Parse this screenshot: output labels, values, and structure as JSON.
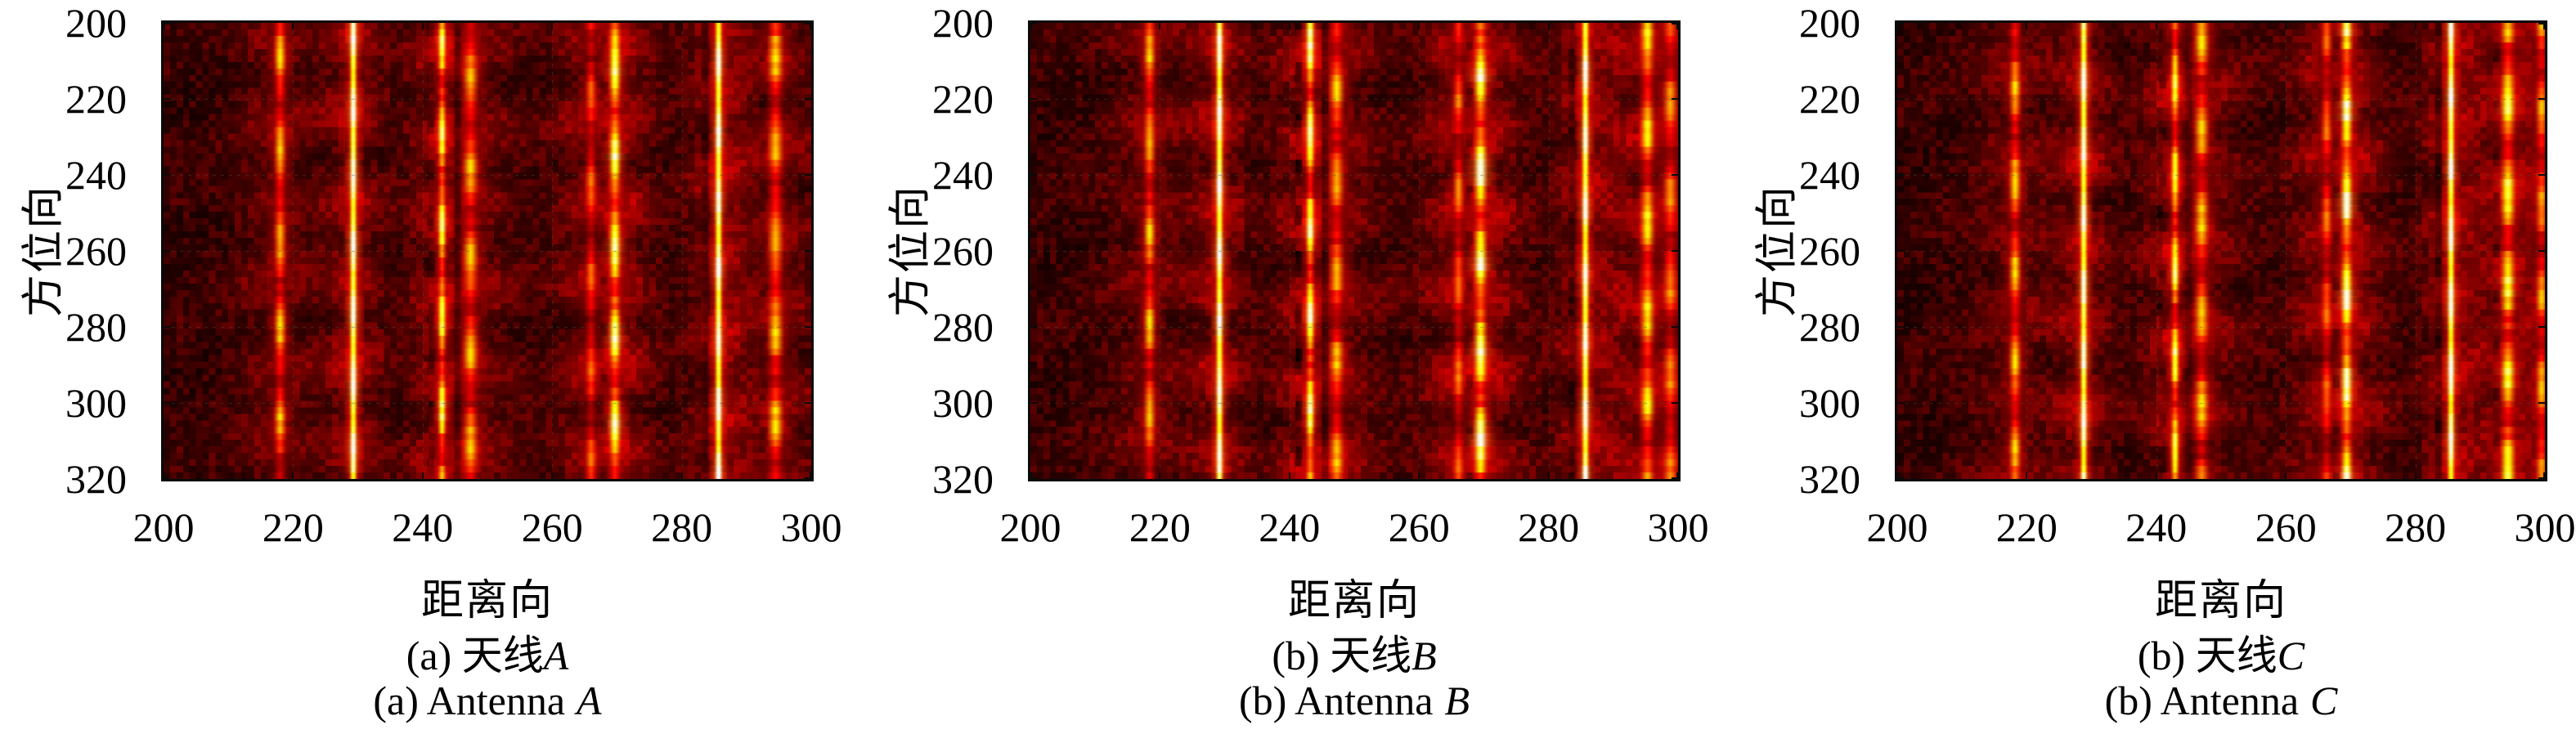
{
  "figure": {
    "background": "#ffffff",
    "axis_color": "#0a0a0a",
    "grid_color": "rgba(70,85,55,0.5)",
    "colormap": "hot"
  },
  "chart_data": [
    {
      "type": "heatmap",
      "subplot": "left",
      "xlabel": "距离向",
      "ylabel": "方位向",
      "xlim": [
        200,
        300
      ],
      "ylim": [
        200,
        320
      ],
      "y_axis_reversed": true,
      "x_ticks": [
        "200",
        "220",
        "240",
        "260",
        "280",
        "300"
      ],
      "y_ticks": [
        "200",
        "220",
        "240",
        "260",
        "280",
        "300",
        "320"
      ],
      "grid": true,
      "colormap": "hot",
      "caption_zh_prefix": "(a) 天线",
      "caption_en_prefix": "(a) Antenna",
      "caption_letter": "A",
      "seed": 7,
      "bright_stripes": [
        {
          "x": 218.0,
          "w": 0.9,
          "t": 0.63
        },
        {
          "x": 229.3,
          "w": 0.6,
          "t": 1.0
        },
        {
          "x": 243.0,
          "w": 0.65,
          "t": 0.8
        },
        {
          "x": 247.4,
          "w": 1.15,
          "t": 0.63
        },
        {
          "x": 266.0,
          "w": 0.85,
          "t": 0.5
        },
        {
          "x": 269.7,
          "w": 0.9,
          "t": 0.86
        },
        {
          "x": 285.7,
          "w": 0.6,
          "t": 1.0
        },
        {
          "x": 294.5,
          "w": 1.15,
          "t": 0.66
        }
      ],
      "dark_stripes": [
        {
          "x": 241.2,
          "w": 0.55,
          "t": 0.4,
          "dotted": true
        },
        {
          "x": 245.3,
          "w": 0.5,
          "t": 0.35,
          "dotted": false
        },
        {
          "x": 268.0,
          "w": 0.5,
          "t": 0.35,
          "dotted": true
        },
        {
          "x": 283.8,
          "w": 0.5,
          "t": 0.22,
          "dotted": false
        },
        {
          "x": 292.8,
          "w": 0.45,
          "t": 0.28,
          "dotted": true
        }
      ]
    },
    {
      "type": "heatmap",
      "subplot": "middle",
      "xlabel": "距离向",
      "ylabel": "方位向",
      "xlim": [
        200,
        300
      ],
      "ylim": [
        200,
        320
      ],
      "y_axis_reversed": true,
      "x_ticks": [
        "200",
        "220",
        "240",
        "260",
        "280",
        "300"
      ],
      "y_ticks": [
        "200",
        "220",
        "240",
        "260",
        "280",
        "300",
        "320"
      ],
      "grid": true,
      "colormap": "hot",
      "caption_zh_prefix": "(b) 天线",
      "caption_en_prefix": "(b) Antenna",
      "caption_letter": "B",
      "seed": 19,
      "bright_stripes": [
        {
          "x": 218.4,
          "w": 0.9,
          "t": 0.63
        },
        {
          "x": 229.2,
          "w": 0.6,
          "t": 1.0
        },
        {
          "x": 243.2,
          "w": 0.7,
          "t": 0.88
        },
        {
          "x": 247.3,
          "w": 1.1,
          "t": 0.62
        },
        {
          "x": 266.1,
          "w": 0.85,
          "t": 0.52
        },
        {
          "x": 269.5,
          "w": 1.0,
          "t": 0.9
        },
        {
          "x": 285.7,
          "w": 0.6,
          "t": 1.0
        },
        {
          "x": 295.3,
          "w": 1.1,
          "t": 0.7
        },
        {
          "x": 298.8,
          "w": 1.1,
          "t": 0.55
        }
      ],
      "dark_stripes": [
        {
          "x": 241.3,
          "w": 0.55,
          "t": 0.5,
          "dotted": true
        },
        {
          "x": 245.5,
          "w": 0.5,
          "t": 0.3,
          "dotted": false
        },
        {
          "x": 267.8,
          "w": 0.5,
          "t": 0.4,
          "dotted": true
        },
        {
          "x": 283.8,
          "w": 0.5,
          "t": 0.22,
          "dotted": false
        },
        {
          "x": 293.5,
          "w": 0.45,
          "t": 0.3,
          "dotted": true
        }
      ]
    },
    {
      "type": "heatmap",
      "subplot": "right",
      "xlabel": "距离向",
      "ylabel": "方位向",
      "xlim": [
        200,
        300
      ],
      "ylim": [
        200,
        320
      ],
      "y_axis_reversed": true,
      "x_ticks": [
        "200",
        "220",
        "240",
        "260",
        "280",
        "300"
      ],
      "y_ticks": [
        "200",
        "220",
        "240",
        "260",
        "280",
        "300",
        "320"
      ],
      "grid": true,
      "colormap": "hot",
      "caption_zh_prefix": "(b) 天线",
      "caption_en_prefix": "(b) Antenna",
      "caption_letter": "C",
      "seed": 42,
      "bright_stripes": [
        {
          "x": 218.2,
          "w": 0.9,
          "t": 0.63
        },
        {
          "x": 228.8,
          "w": 0.6,
          "t": 1.0
        },
        {
          "x": 242.9,
          "w": 0.65,
          "t": 0.82
        },
        {
          "x": 247.0,
          "w": 1.1,
          "t": 0.65
        },
        {
          "x": 266.3,
          "w": 0.85,
          "t": 0.52
        },
        {
          "x": 269.4,
          "w": 0.9,
          "t": 0.88
        },
        {
          "x": 285.5,
          "w": 0.6,
          "t": 1.0
        },
        {
          "x": 294.3,
          "w": 1.1,
          "t": 0.78
        },
        {
          "x": 299.5,
          "w": 0.9,
          "t": 0.6
        }
      ],
      "dark_stripes": [
        {
          "x": 241.0,
          "w": 0.55,
          "t": 0.42,
          "dotted": true
        },
        {
          "x": 245.0,
          "w": 0.5,
          "t": 0.35,
          "dotted": false
        },
        {
          "x": 267.8,
          "w": 0.5,
          "t": 0.38,
          "dotted": true
        },
        {
          "x": 283.6,
          "w": 0.5,
          "t": 0.22,
          "dotted": false
        },
        {
          "x": 292.6,
          "w": 0.45,
          "t": 0.28,
          "dotted": true
        }
      ]
    }
  ]
}
